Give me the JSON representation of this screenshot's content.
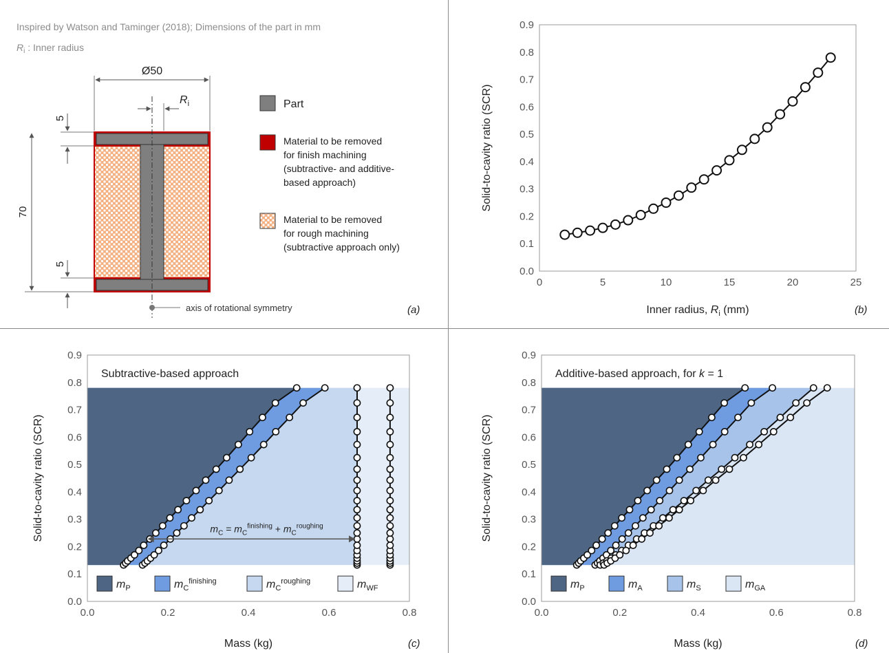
{
  "panel_a": {
    "caption_line1": "Inspired by Watson and Taminger (2018); Dimensions  of the part in mm",
    "caption_line2_symbol": "R",
    "caption_line2_sub": "i",
    "caption_line2_rest": " : Inner radius",
    "dim_diameter": "Ø50",
    "dim_radius_symbol": "R",
    "dim_radius_sub": "i",
    "dim_top": "5",
    "dim_height": "70",
    "dim_bottom": "5",
    "axis_label": "axis of rotational symmetry",
    "legend": [
      {
        "lines": [
          "Part"
        ],
        "color": "#7f7f7f"
      },
      {
        "lines": [
          "Material to be removed",
          "for finish machining",
          "(subtractive- and additive-",
          "based approach)"
        ],
        "color": "#c00000"
      },
      {
        "lines": [
          "Material to be removed",
          "for rough machining",
          "(subtractive approach only)"
        ],
        "color": "#f4b183"
      }
    ],
    "panel_label": "(a)"
  },
  "chart_data": [
    {
      "id": "b",
      "type": "scatter",
      "panel_label": "(b)",
      "xlabel": "Inner radius, ",
      "xlabel_symbol": "R",
      "xlabel_sub": "i",
      "xlabel_unit": " (mm)",
      "ylabel": "Solid-to-cavity  ratio (SCR)",
      "xlim": [
        0,
        25
      ],
      "ylim": [
        0,
        0.9
      ],
      "xticks": [
        "0",
        "5",
        "10",
        "15",
        "20",
        "25"
      ],
      "yticks": [
        "0.0",
        "0.1",
        "0.2",
        "0.3",
        "0.4",
        "0.5",
        "0.6",
        "0.7",
        "0.8",
        "0.9"
      ],
      "x": [
        2,
        3,
        4,
        5,
        6,
        7,
        8,
        9,
        10,
        11,
        12,
        13,
        14,
        15,
        16,
        17,
        18,
        19,
        20,
        21,
        22,
        23
      ],
      "y": [
        0.133,
        0.14,
        0.148,
        0.158,
        0.17,
        0.186,
        0.205,
        0.228,
        0.25,
        0.276,
        0.305,
        0.335,
        0.368,
        0.405,
        0.443,
        0.483,
        0.525,
        0.573,
        0.62,
        0.672,
        0.725,
        0.78
      ]
    },
    {
      "id": "c",
      "type": "area",
      "panel_label": "(c)",
      "title": "Subtractive-based approach",
      "xlabel": "Mass (kg)",
      "ylabel": "Solid-to-cavity  ratio (SCR)",
      "xlim": [
        0,
        0.8
      ],
      "ylim": [
        0,
        0.9
      ],
      "xticks": [
        "0.0",
        "0.2",
        "0.4",
        "0.6",
        "0.8"
      ],
      "yticks": [
        "0.0",
        "0.1",
        "0.2",
        "0.3",
        "0.4",
        "0.5",
        "0.6",
        "0.7",
        "0.8",
        "0.9"
      ],
      "band_colors": [
        "#4e6584",
        "#6f9be0",
        "#c6d8ef",
        "#e4edf8"
      ],
      "scr": [
        0.133,
        0.14,
        0.148,
        0.158,
        0.17,
        0.186,
        0.205,
        0.228,
        0.25,
        0.276,
        0.305,
        0.335,
        0.368,
        0.405,
        0.443,
        0.483,
        0.525,
        0.573,
        0.62,
        0.672,
        0.725,
        0.78
      ],
      "series": [
        {
          "x": [
            0.09,
            0.095,
            0.1,
            0.108,
            0.117,
            0.128,
            0.14,
            0.155,
            0.17,
            0.187,
            0.205,
            0.225,
            0.246,
            0.27,
            0.294,
            0.32,
            0.346,
            0.375,
            0.403,
            0.435,
            0.467,
            0.52
          ]
        },
        {
          "x": [
            0.137,
            0.143,
            0.149,
            0.157,
            0.166,
            0.177,
            0.19,
            0.206,
            0.222,
            0.24,
            0.259,
            0.28,
            0.302,
            0.327,
            0.352,
            0.379,
            0.407,
            0.438,
            0.468,
            0.502,
            0.536,
            0.59
          ]
        },
        {
          "x": [
            0.67,
            0.67,
            0.67,
            0.67,
            0.67,
            0.67,
            0.67,
            0.67,
            0.67,
            0.67,
            0.67,
            0.67,
            0.67,
            0.67,
            0.67,
            0.67,
            0.67,
            0.67,
            0.67,
            0.67,
            0.67,
            0.67
          ]
        },
        {
          "x": [
            0.752,
            0.752,
            0.752,
            0.752,
            0.752,
            0.752,
            0.752,
            0.752,
            0.752,
            0.752,
            0.752,
            0.752,
            0.752,
            0.752,
            0.752,
            0.752,
            0.752,
            0.752,
            0.752,
            0.752,
            0.752,
            0.752
          ]
        }
      ],
      "annotation": {
        "m": "m",
        "sub_c": "C",
        "eq": " = ",
        "plus": " + ",
        "sup_fin": "finishing",
        "sup_rough": "roughing"
      },
      "legend": [
        {
          "base": "m",
          "sub": "P",
          "sup": ""
        },
        {
          "base": "m",
          "sub": "C",
          "sup": "finishing"
        },
        {
          "base": "m",
          "sub": "C",
          "sup": "roughing"
        },
        {
          "base": "m",
          "sub": "WF",
          "sup": ""
        }
      ]
    },
    {
      "id": "d",
      "type": "area",
      "panel_label": "(d)",
      "title": "Additive-based approach, for ",
      "title_symbol": "k",
      "title_rest": " = 1",
      "xlabel": "Mass (kg)",
      "ylabel": "Solid-to-cavity  ratio (SCR)",
      "xlim": [
        0,
        0.8
      ],
      "ylim": [
        0,
        0.9
      ],
      "xticks": [
        "0.0",
        "0.2",
        "0.4",
        "0.6",
        "0.8"
      ],
      "yticks": [
        "0.0",
        "0.1",
        "0.2",
        "0.3",
        "0.4",
        "0.5",
        "0.6",
        "0.7",
        "0.8",
        "0.9"
      ],
      "band_colors": [
        "#4e6584",
        "#6f9be0",
        "#a7c3ea",
        "#dbe6f5"
      ],
      "scr": [
        0.133,
        0.14,
        0.148,
        0.158,
        0.17,
        0.186,
        0.205,
        0.228,
        0.25,
        0.276,
        0.305,
        0.335,
        0.368,
        0.405,
        0.443,
        0.483,
        0.525,
        0.573,
        0.62,
        0.672,
        0.725,
        0.78
      ],
      "series": [
        {
          "x": [
            0.09,
            0.095,
            0.1,
            0.108,
            0.117,
            0.128,
            0.14,
            0.155,
            0.17,
            0.187,
            0.205,
            0.225,
            0.246,
            0.27,
            0.294,
            0.32,
            0.346,
            0.375,
            0.403,
            0.435,
            0.467,
            0.52
          ]
        },
        {
          "x": [
            0.137,
            0.143,
            0.149,
            0.157,
            0.166,
            0.177,
            0.19,
            0.206,
            0.222,
            0.24,
            0.259,
            0.28,
            0.302,
            0.327,
            0.352,
            0.379,
            0.407,
            0.438,
            0.468,
            0.502,
            0.536,
            0.59
          ]
        },
        {
          "x": [
            0.15,
            0.158,
            0.167,
            0.178,
            0.19,
            0.205,
            0.222,
            0.243,
            0.263,
            0.286,
            0.31,
            0.336,
            0.364,
            0.395,
            0.426,
            0.46,
            0.494,
            0.532,
            0.569,
            0.61,
            0.65,
            0.695
          ]
        },
        {
          "x": [
            0.16,
            0.168,
            0.177,
            0.188,
            0.2,
            0.216,
            0.234,
            0.256,
            0.277,
            0.3,
            0.326,
            0.352,
            0.381,
            0.413,
            0.445,
            0.48,
            0.516,
            0.555,
            0.593,
            0.636,
            0.678,
            0.73
          ]
        }
      ],
      "legend": [
        {
          "base": "m",
          "sub": "P",
          "sup": ""
        },
        {
          "base": "m",
          "sub": "A",
          "sup": ""
        },
        {
          "base": "m",
          "sub": "S",
          "sup": ""
        },
        {
          "base": "m",
          "sub": "GA",
          "sup": ""
        }
      ]
    }
  ]
}
